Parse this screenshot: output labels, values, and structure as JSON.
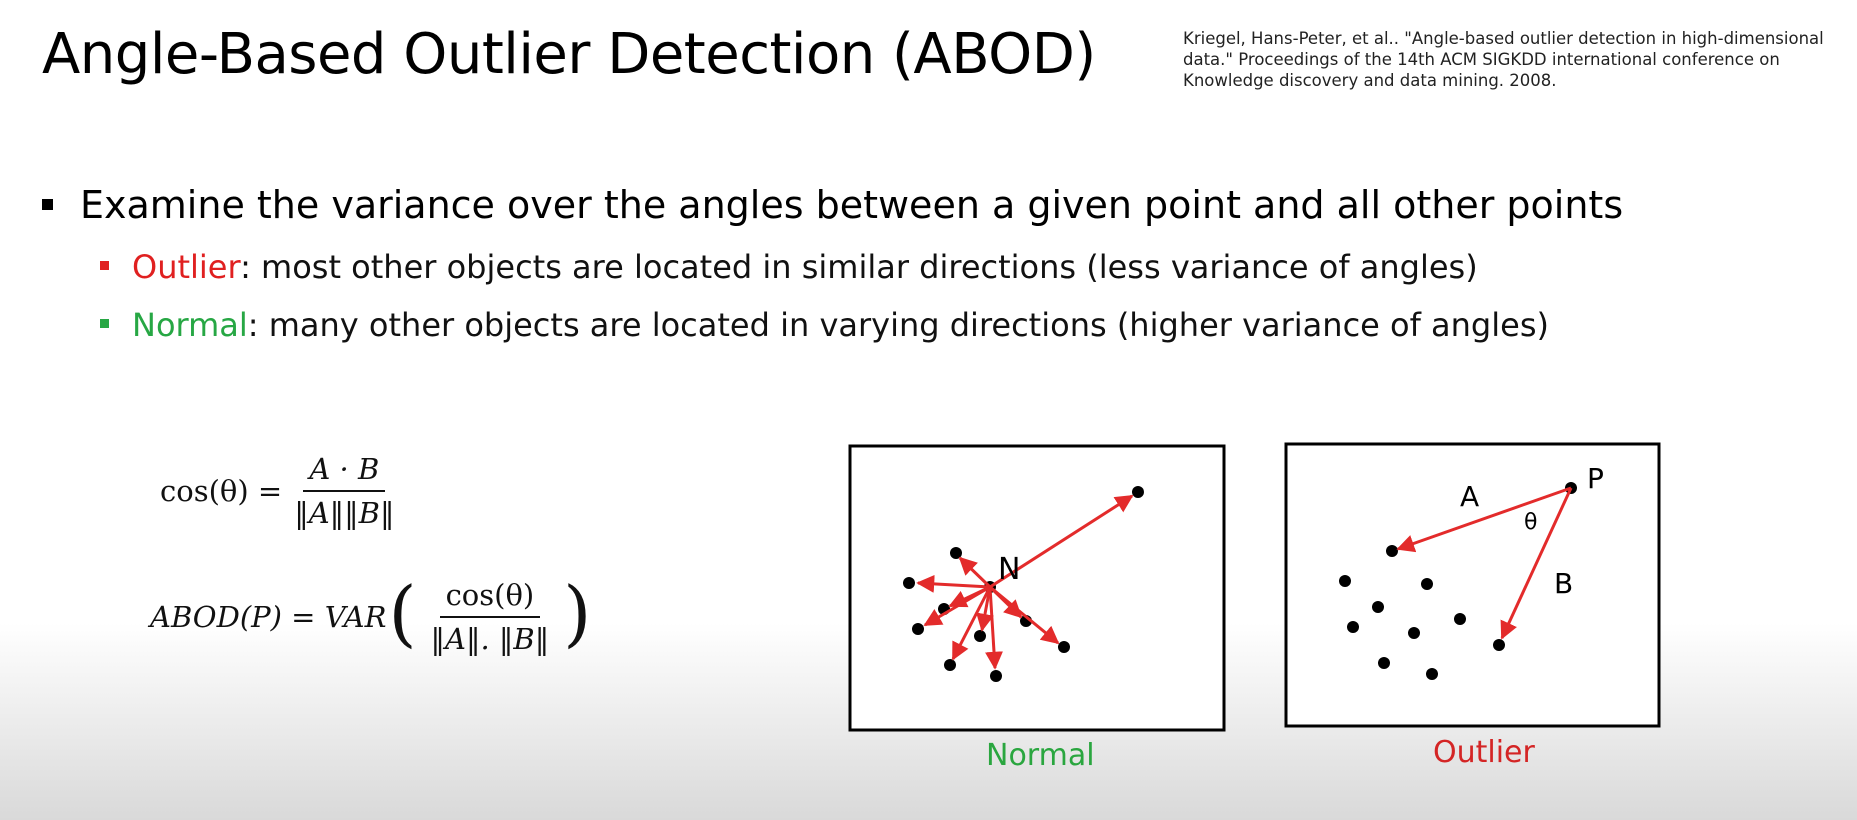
{
  "title": "Angle-Based Outlier Detection (ABOD)",
  "citation": "Kriegel, Hans-Peter, et al.. \"Angle-based outlier detection in high-dimensional data.\" Proceedings of the 14th ACM SIGKDD international conference on Knowledge discovery and data mining. 2008.",
  "bullets": {
    "main": "Examine the variance over the angles between a given point and all other points",
    "outlier_term": "Outlier",
    "outlier_text": ": most other objects are located in similar directions (less variance of angles)",
    "normal_term": "Normal",
    "normal_text": ": many other objects are located in varying directions (higher variance of angles)"
  },
  "formulas": {
    "f1_lhs": "cos(θ) =",
    "f1_num": "A · B",
    "f1_den": "‖A‖‖B‖",
    "f2_lhs": "ABOD(P) = VAR",
    "f2_num": "cos(θ)",
    "f2_den": "‖A‖. ‖B‖"
  },
  "diagrams": {
    "normal_point_label": "N",
    "outlier_point_label": "P",
    "vector_a_label": "A",
    "vector_b_label": "B",
    "angle_label": "θ",
    "caption_normal": "Normal",
    "caption_outlier": "Outlier"
  },
  "colors": {
    "outlier": "#e02020",
    "normal": "#27a744",
    "arrow": "#e32b2b"
  }
}
